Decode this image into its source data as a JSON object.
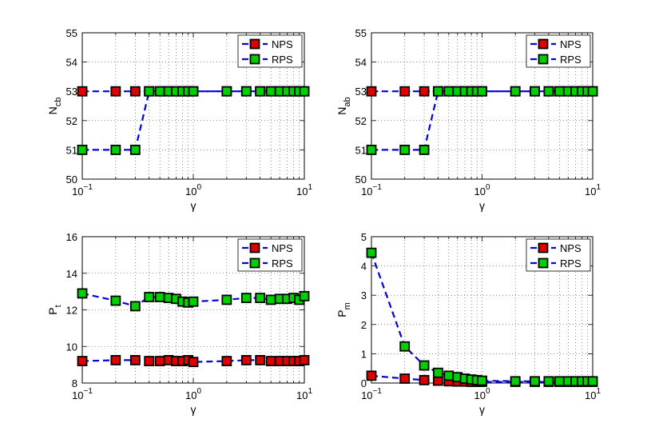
{
  "chart_data": [
    {
      "type": "line",
      "xscale": "log",
      "xlim": [
        0.1,
        10
      ],
      "ylim": [
        50,
        55
      ],
      "xticks": [
        {
          "v": 0.1,
          "base": "10",
          "exp": "−1"
        },
        {
          "v": 1,
          "base": "10",
          "exp": "0"
        },
        {
          "v": 10,
          "base": "10",
          "exp": "1"
        }
      ],
      "yticks": [
        50,
        51,
        52,
        53,
        54,
        55
      ],
      "grid": true,
      "xlabel": "γ",
      "ylabel_main": "N",
      "ylabel_sub": "cb",
      "legend_position": "top-right",
      "x": [
        0.1,
        0.2,
        0.3,
        0.4,
        0.5,
        0.6,
        0.7,
        0.8,
        0.9,
        1,
        2,
        3,
        4,
        5,
        6,
        7,
        8,
        9,
        10
      ],
      "series": [
        {
          "name": "NPS",
          "color": "#e00000",
          "values": [
            53,
            53,
            53,
            53,
            53,
            53,
            53,
            53,
            53,
            53,
            53,
            53,
            53,
            53,
            53,
            53,
            53,
            53,
            53
          ]
        },
        {
          "name": "RPS",
          "color": "#00d000",
          "values": [
            51,
            51,
            51,
            53,
            53,
            53,
            53,
            53,
            53,
            53,
            53,
            53,
            53,
            53,
            53,
            53,
            53,
            53,
            53
          ]
        }
      ]
    },
    {
      "type": "line",
      "xscale": "log",
      "xlim": [
        0.1,
        10
      ],
      "ylim": [
        50,
        55
      ],
      "xticks": [
        {
          "v": 0.1,
          "base": "10",
          "exp": "−1"
        },
        {
          "v": 1,
          "base": "10",
          "exp": "0"
        },
        {
          "v": 10,
          "base": "10",
          "exp": "1"
        }
      ],
      "yticks": [
        50,
        51,
        52,
        53,
        54,
        55
      ],
      "grid": true,
      "xlabel": "γ",
      "ylabel_main": "N",
      "ylabel_sub": "ab",
      "legend_position": "top-right",
      "x": [
        0.1,
        0.2,
        0.3,
        0.4,
        0.5,
        0.6,
        0.7,
        0.8,
        0.9,
        1,
        2,
        3,
        4,
        5,
        6,
        7,
        8,
        9,
        10
      ],
      "series": [
        {
          "name": "NPS",
          "color": "#e00000",
          "values": [
            53,
            53,
            53,
            53,
            53,
            53,
            53,
            53,
            53,
            53,
            53,
            53,
            53,
            53,
            53,
            53,
            53,
            53,
            53
          ]
        },
        {
          "name": "RPS",
          "color": "#00d000",
          "values": [
            51,
            51,
            51,
            53,
            53,
            53,
            53,
            53,
            53,
            53,
            53,
            53,
            53,
            53,
            53,
            53,
            53,
            53,
            53
          ]
        }
      ]
    },
    {
      "type": "line",
      "xscale": "log",
      "xlim": [
        0.1,
        10
      ],
      "ylim": [
        8,
        16
      ],
      "xticks": [
        {
          "v": 0.1,
          "base": "10",
          "exp": "−1"
        },
        {
          "v": 1,
          "base": "10",
          "exp": "0"
        },
        {
          "v": 10,
          "base": "10",
          "exp": "1"
        }
      ],
      "yticks": [
        8,
        10,
        12,
        14,
        16
      ],
      "grid": true,
      "xlabel": "γ",
      "ylabel_main": "P",
      "ylabel_sub": "t",
      "legend_position": "top-right",
      "x": [
        0.1,
        0.2,
        0.3,
        0.4,
        0.5,
        0.6,
        0.7,
        0.8,
        0.9,
        1,
        2,
        3,
        4,
        5,
        6,
        7,
        8,
        9,
        10
      ],
      "series": [
        {
          "name": "NPS",
          "color": "#e00000",
          "values": [
            9.2,
            9.25,
            9.25,
            9.2,
            9.2,
            9.25,
            9.2,
            9.2,
            9.25,
            9.15,
            9.2,
            9.25,
            9.25,
            9.2,
            9.2,
            9.2,
            9.2,
            9.2,
            9.25
          ]
        },
        {
          "name": "RPS",
          "color": "#00d000",
          "values": [
            12.9,
            12.5,
            12.2,
            12.7,
            12.7,
            12.65,
            12.6,
            12.45,
            12.4,
            12.45,
            12.55,
            12.65,
            12.65,
            12.55,
            12.6,
            12.6,
            12.65,
            12.55,
            12.75
          ]
        }
      ]
    },
    {
      "type": "line",
      "xscale": "log",
      "xlim": [
        0.1,
        10
      ],
      "ylim": [
        0,
        5
      ],
      "xticks": [
        {
          "v": 0.1,
          "base": "10",
          "exp": "−1"
        },
        {
          "v": 1,
          "base": "10",
          "exp": "0"
        },
        {
          "v": 10,
          "base": "10",
          "exp": "1"
        }
      ],
      "yticks": [
        0,
        1,
        2,
        3,
        4,
        5
      ],
      "grid": true,
      "xlabel": "γ",
      "ylabel_main": "P",
      "ylabel_sub": "m",
      "legend_position": "top-right",
      "x": [
        0.1,
        0.2,
        0.3,
        0.4,
        0.5,
        0.6,
        0.7,
        0.8,
        0.9,
        1,
        2,
        3,
        4,
        5,
        6,
        7,
        8,
        9,
        10
      ],
      "series": [
        {
          "name": "NPS",
          "color": "#e00000",
          "values": [
            0.25,
            0.15,
            0.1,
            0.08,
            0.06,
            0.05,
            0.05,
            0.04,
            0.04,
            0.04,
            0.04,
            0.04,
            0.04,
            0.04,
            0.04,
            0.04,
            0.04,
            0.04,
            0.04
          ]
        },
        {
          "name": "RPS",
          "color": "#00d000",
          "values": [
            4.45,
            1.25,
            0.6,
            0.35,
            0.25,
            0.2,
            0.15,
            0.12,
            0.1,
            0.08,
            0.06,
            0.06,
            0.06,
            0.06,
            0.06,
            0.06,
            0.06,
            0.06,
            0.06
          ]
        }
      ]
    }
  ]
}
